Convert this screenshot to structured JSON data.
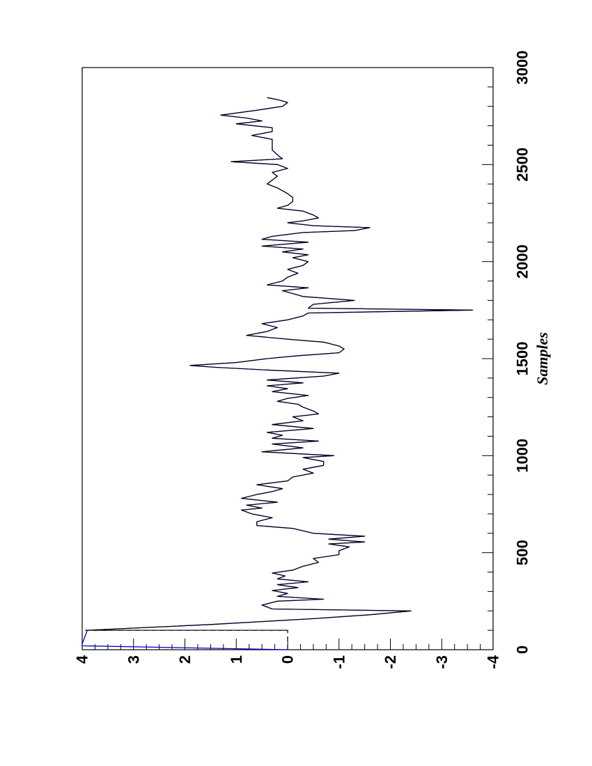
{
  "chart_data": {
    "type": "line",
    "orientation": "rotated-90",
    "xlabel": "Samples",
    "ylabel": "",
    "xlim": [
      0,
      3000
    ],
    "ylim": [
      -4,
      4
    ],
    "x_ticks": [
      0,
      500,
      1000,
      1500,
      2000,
      2500,
      3000
    ],
    "x_tick_labels": [
      "0",
      "500",
      "1000",
      "1500",
      "2000",
      "2500",
      "3000"
    ],
    "y_ticks": [
      -4,
      -3,
      -2,
      -1,
      0,
      1,
      2,
      3,
      4
    ],
    "y_tick_labels": [
      "-4",
      "-3",
      "-2",
      "-1",
      "0",
      "1",
      "2",
      "3",
      "4"
    ],
    "grid": false,
    "series": [
      {
        "style": "dashed",
        "color": "#000000",
        "points": [
          [
            0,
            0
          ],
          [
            100,
            0
          ],
          [
            100,
            4
          ]
        ]
      },
      {
        "style": "solid",
        "color": "#0000cc",
        "points": [
          [
            0,
            0
          ],
          [
            20,
            4
          ],
          [
            30,
            4
          ],
          [
            100,
            3.9
          ],
          [
            130,
            1.5
          ],
          [
            160,
            -0.5
          ],
          [
            180,
            -1.6
          ],
          [
            200,
            -2.4
          ],
          [
            210,
            0.3
          ],
          [
            230,
            0.5
          ],
          [
            250,
            0.2
          ],
          [
            260,
            -0.7
          ],
          [
            275,
            0.2
          ],
          [
            290,
            0.0
          ],
          [
            305,
            0.3
          ],
          [
            320,
            -0.2
          ],
          [
            335,
            0.2
          ],
          [
            350,
            -0.4
          ],
          [
            365,
            0.2
          ],
          [
            380,
            0.05
          ],
          [
            395,
            0.3
          ],
          [
            410,
            -0.1
          ],
          [
            430,
            -0.3
          ],
          [
            450,
            -0.6
          ],
          [
            470,
            -0.5
          ],
          [
            490,
            -1.0
          ],
          [
            510,
            -1.0
          ],
          [
            530,
            -1.2
          ],
          [
            545,
            -0.8
          ],
          [
            555,
            -1.5
          ],
          [
            570,
            -0.8
          ],
          [
            585,
            -1.5
          ],
          [
            600,
            -0.5
          ],
          [
            625,
            -0.1
          ],
          [
            640,
            0.6
          ],
          [
            660,
            0.6
          ],
          [
            680,
            0.3
          ],
          [
            700,
            0.7
          ],
          [
            720,
            0.9
          ],
          [
            730,
            0.5
          ],
          [
            745,
            0.8
          ],
          [
            760,
            0.2
          ],
          [
            780,
            0.9
          ],
          [
            800,
            0.6
          ],
          [
            815,
            0.3
          ],
          [
            830,
            0.1
          ],
          [
            850,
            0.6
          ],
          [
            870,
            0.0
          ],
          [
            890,
            -0.1
          ],
          [
            910,
            -0.5
          ],
          [
            930,
            -0.3
          ],
          [
            950,
            -0.7
          ],
          [
            970,
            -0.7
          ],
          [
            990,
            -0.3
          ],
          [
            1000,
            -0.9
          ],
          [
            1020,
            0.5
          ],
          [
            1040,
            -0.3
          ],
          [
            1060,
            0.3
          ],
          [
            1075,
            -0.6
          ],
          [
            1090,
            0.3
          ],
          [
            1105,
            0.1
          ],
          [
            1120,
            0.4
          ],
          [
            1140,
            -0.5
          ],
          [
            1160,
            0.3
          ],
          [
            1180,
            -0.3
          ],
          [
            1200,
            -0.1
          ],
          [
            1215,
            -0.6
          ],
          [
            1230,
            -0.5
          ],
          [
            1250,
            -0.3
          ],
          [
            1265,
            -0.2
          ],
          [
            1280,
            0.2
          ],
          [
            1295,
            0.0
          ],
          [
            1310,
            -0.4
          ],
          [
            1330,
            0.3
          ],
          [
            1345,
            0.0
          ],
          [
            1360,
            0.4
          ],
          [
            1375,
            -0.3
          ],
          [
            1390,
            0.4
          ],
          [
            1410,
            -0.7
          ],
          [
            1425,
            -1.0
          ],
          [
            1440,
            0.3
          ],
          [
            1455,
            1.4
          ],
          [
            1465,
            1.9
          ],
          [
            1480,
            1.0
          ],
          [
            1500,
            0.4
          ],
          [
            1515,
            -0.2
          ],
          [
            1530,
            -1.0
          ],
          [
            1550,
            -1.1
          ],
          [
            1565,
            -1.0
          ],
          [
            1585,
            -0.7
          ],
          [
            1600,
            0.0
          ],
          [
            1620,
            0.8
          ],
          [
            1640,
            0.4
          ],
          [
            1660,
            0.2
          ],
          [
            1680,
            0.5
          ],
          [
            1700,
            0.0
          ],
          [
            1720,
            -0.3
          ],
          [
            1735,
            -0.4
          ],
          [
            1750,
            -3.6
          ],
          [
            1760,
            -0.4
          ],
          [
            1780,
            -0.5
          ],
          [
            1800,
            -1.3
          ],
          [
            1820,
            -0.3
          ],
          [
            1835,
            -0.1
          ],
          [
            1850,
            0.1
          ],
          [
            1865,
            -0.4
          ],
          [
            1880,
            0.4
          ],
          [
            1900,
            0.1
          ],
          [
            1920,
            0.0
          ],
          [
            1940,
            -0.2
          ],
          [
            1960,
            0.0
          ],
          [
            1980,
            -0.3
          ],
          [
            2000,
            -0.4
          ],
          [
            2020,
            -0.1
          ],
          [
            2035,
            -0.4
          ],
          [
            2050,
            0.1
          ],
          [
            2065,
            -0.3
          ],
          [
            2080,
            0.5
          ],
          [
            2100,
            -0.4
          ],
          [
            2115,
            0.5
          ],
          [
            2130,
            0.3
          ],
          [
            2150,
            -0.3
          ],
          [
            2160,
            -1.3
          ],
          [
            2175,
            -1.6
          ],
          [
            2185,
            -0.5
          ],
          [
            2200,
            0.0
          ],
          [
            2210,
            -0.3
          ],
          [
            2225,
            -0.6
          ],
          [
            2240,
            -0.5
          ],
          [
            2260,
            -0.3
          ],
          [
            2275,
            0.2
          ],
          [
            2290,
            0.0
          ],
          [
            2310,
            -0.1
          ],
          [
            2330,
            -0.1
          ],
          [
            2350,
            0.0
          ],
          [
            2380,
            0.2
          ],
          [
            2400,
            0.4
          ],
          [
            2420,
            0.3
          ],
          [
            2440,
            0.2
          ],
          [
            2460,
            0.3
          ],
          [
            2480,
            0.0
          ],
          [
            2500,
            0.2
          ],
          [
            2515,
            1.1
          ],
          [
            2530,
            0.1
          ],
          [
            2550,
            0.2
          ],
          [
            2575,
            0.3
          ],
          [
            2600,
            0.3
          ],
          [
            2630,
            0.3
          ],
          [
            2650,
            0.7
          ],
          [
            2670,
            0.3
          ],
          [
            2690,
            0.3
          ],
          [
            2710,
            1.0
          ],
          [
            2725,
            0.5
          ],
          [
            2740,
            0.8
          ],
          [
            2755,
            1.3
          ],
          [
            2780,
            0.6
          ],
          [
            2800,
            0.1
          ],
          [
            2820,
            0.0
          ],
          [
            2835,
            0.2
          ],
          [
            2845,
            0.4
          ]
        ]
      },
      {
        "style": "solid",
        "color": "#000000",
        "points": [
          [
            100,
            0
          ],
          [
            100,
            3.9
          ],
          [
            130,
            1.5
          ],
          [
            160,
            -0.5
          ],
          [
            180,
            -1.6
          ],
          [
            200,
            -2.4
          ],
          [
            210,
            0.3
          ],
          [
            230,
            0.5
          ],
          [
            250,
            0.2
          ],
          [
            260,
            -0.7
          ],
          [
            275,
            0.2
          ],
          [
            290,
            0.0
          ],
          [
            305,
            0.3
          ],
          [
            320,
            -0.2
          ],
          [
            335,
            0.2
          ],
          [
            350,
            -0.4
          ],
          [
            365,
            0.2
          ],
          [
            380,
            0.05
          ],
          [
            395,
            0.3
          ],
          [
            410,
            -0.1
          ],
          [
            430,
            -0.3
          ],
          [
            450,
            -0.6
          ],
          [
            470,
            -0.5
          ],
          [
            490,
            -1.0
          ],
          [
            510,
            -1.0
          ],
          [
            530,
            -1.2
          ],
          [
            545,
            -0.8
          ],
          [
            555,
            -1.5
          ],
          [
            570,
            -0.8
          ],
          [
            585,
            -1.5
          ],
          [
            600,
            -0.5
          ],
          [
            625,
            -0.1
          ],
          [
            640,
            0.6
          ],
          [
            660,
            0.6
          ],
          [
            680,
            0.3
          ],
          [
            700,
            0.7
          ],
          [
            720,
            0.9
          ],
          [
            730,
            0.5
          ],
          [
            745,
            0.8
          ],
          [
            760,
            0.2
          ],
          [
            780,
            0.9
          ],
          [
            800,
            0.6
          ],
          [
            815,
            0.3
          ],
          [
            830,
            0.1
          ],
          [
            850,
            0.6
          ],
          [
            870,
            0.0
          ],
          [
            890,
            -0.1
          ],
          [
            910,
            -0.5
          ],
          [
            930,
            -0.3
          ],
          [
            950,
            -0.7
          ],
          [
            970,
            -0.7
          ],
          [
            990,
            -0.3
          ],
          [
            1000,
            -0.9
          ],
          [
            1020,
            0.5
          ],
          [
            1040,
            -0.3
          ],
          [
            1060,
            0.3
          ],
          [
            1075,
            -0.6
          ],
          [
            1090,
            0.3
          ],
          [
            1105,
            0.1
          ],
          [
            1120,
            0.4
          ],
          [
            1140,
            -0.5
          ],
          [
            1160,
            0.3
          ],
          [
            1180,
            -0.3
          ],
          [
            1200,
            -0.1
          ],
          [
            1215,
            -0.6
          ],
          [
            1230,
            -0.5
          ],
          [
            1250,
            -0.3
          ],
          [
            1265,
            -0.2
          ],
          [
            1280,
            0.2
          ],
          [
            1295,
            0.0
          ],
          [
            1310,
            -0.4
          ],
          [
            1330,
            0.3
          ],
          [
            1345,
            0.0
          ],
          [
            1360,
            0.4
          ],
          [
            1375,
            -0.3
          ],
          [
            1390,
            0.4
          ],
          [
            1410,
            -0.7
          ],
          [
            1425,
            -1.0
          ],
          [
            1440,
            0.3
          ],
          [
            1455,
            1.4
          ],
          [
            1465,
            1.9
          ],
          [
            1480,
            1.0
          ],
          [
            1500,
            0.4
          ],
          [
            1515,
            -0.2
          ],
          [
            1530,
            -1.0
          ],
          [
            1550,
            -1.1
          ],
          [
            1565,
            -1.0
          ],
          [
            1585,
            -0.7
          ],
          [
            1600,
            0.0
          ],
          [
            1620,
            0.8
          ],
          [
            1640,
            0.4
          ],
          [
            1660,
            0.2
          ],
          [
            1680,
            0.5
          ],
          [
            1700,
            0.0
          ],
          [
            1720,
            -0.3
          ],
          [
            1735,
            -0.4
          ],
          [
            1750,
            -3.6
          ],
          [
            1760,
            -0.4
          ],
          [
            1780,
            -0.5
          ],
          [
            1800,
            -1.3
          ],
          [
            1820,
            -0.3
          ],
          [
            1835,
            -0.1
          ],
          [
            1850,
            0.1
          ],
          [
            1865,
            -0.4
          ],
          [
            1880,
            0.4
          ],
          [
            1900,
            0.1
          ],
          [
            1920,
            0.0
          ],
          [
            1940,
            -0.2
          ],
          [
            1960,
            0.0
          ],
          [
            1980,
            -0.3
          ],
          [
            2000,
            -0.4
          ],
          [
            2020,
            -0.1
          ],
          [
            2035,
            -0.4
          ],
          [
            2050,
            0.1
          ],
          [
            2065,
            -0.3
          ],
          [
            2080,
            0.5
          ],
          [
            2100,
            -0.4
          ],
          [
            2115,
            0.5
          ],
          [
            2130,
            0.3
          ],
          [
            2150,
            -0.3
          ],
          [
            2160,
            -1.3
          ],
          [
            2175,
            -1.6
          ],
          [
            2185,
            -0.5
          ],
          [
            2200,
            0.0
          ],
          [
            2210,
            -0.3
          ],
          [
            2225,
            -0.6
          ],
          [
            2240,
            -0.5
          ],
          [
            2260,
            -0.3
          ],
          [
            2275,
            0.2
          ],
          [
            2290,
            0.0
          ],
          [
            2310,
            -0.1
          ],
          [
            2330,
            -0.1
          ],
          [
            2350,
            0.0
          ],
          [
            2380,
            0.2
          ],
          [
            2400,
            0.4
          ],
          [
            2420,
            0.3
          ],
          [
            2440,
            0.2
          ],
          [
            2460,
            0.3
          ],
          [
            2480,
            0.0
          ],
          [
            2500,
            0.2
          ],
          [
            2515,
            1.1
          ],
          [
            2530,
            0.1
          ],
          [
            2550,
            0.2
          ],
          [
            2575,
            0.3
          ],
          [
            2600,
            0.3
          ],
          [
            2630,
            0.3
          ],
          [
            2650,
            0.7
          ],
          [
            2670,
            0.3
          ],
          [
            2690,
            0.3
          ],
          [
            2710,
            1.0
          ],
          [
            2725,
            0.5
          ],
          [
            2740,
            0.8
          ],
          [
            2755,
            1.3
          ],
          [
            2780,
            0.6
          ],
          [
            2800,
            0.1
          ],
          [
            2820,
            0.0
          ],
          [
            2835,
            0.2
          ],
          [
            2845,
            0.4
          ]
        ]
      }
    ]
  }
}
